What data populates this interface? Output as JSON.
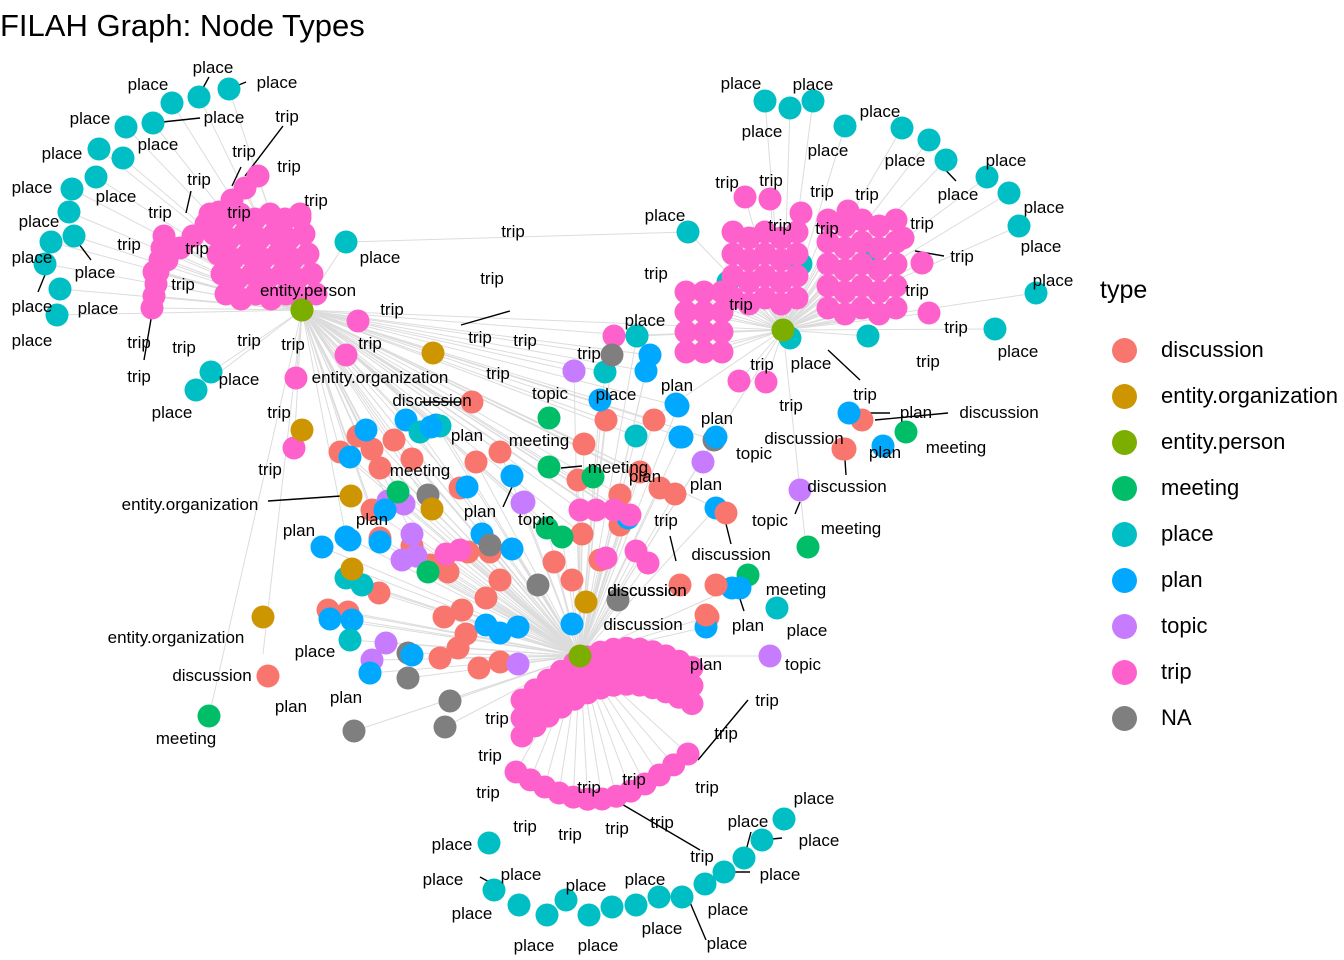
{
  "title": "FILAH Graph: Node Types",
  "legend": {
    "title": "type",
    "items": [
      {
        "key": "discussion",
        "label": "discussion",
        "color": "#F8766D"
      },
      {
        "key": "entity.organization",
        "label": "entity.organization",
        "color": "#CD9600"
      },
      {
        "key": "entity.person",
        "label": "entity.person",
        "color": "#7CAE00"
      },
      {
        "key": "meeting",
        "label": "meeting",
        "color": "#00BE67"
      },
      {
        "key": "place",
        "label": "place",
        "color": "#00BFC4"
      },
      {
        "key": "plan",
        "label": "plan",
        "color": "#00A9FF"
      },
      {
        "key": "topic",
        "label": "topic",
        "color": "#C77CFF"
      },
      {
        "key": "trip",
        "label": "trip",
        "color": "#FF61CC"
      },
      {
        "key": "NA",
        "label": "NA",
        "color": "#7F7F7F"
      }
    ]
  },
  "nodes": [
    {
      "id": "p_tl_1",
      "type": "entity.person",
      "label": "entity.person"
    },
    {
      "id": "p_tr_1",
      "type": "entity.person",
      "label": ""
    },
    {
      "id": "p_bot_1",
      "type": "entity.person",
      "label": ""
    },
    {
      "id": "o1",
      "type": "entity.organization",
      "label": "entity.organization"
    },
    {
      "id": "o2",
      "type": "entity.organization",
      "label": "entity.organization"
    },
    {
      "id": "o3",
      "type": "entity.organization",
      "label": "entity.organization"
    },
    {
      "id": "o4",
      "type": "entity.organization",
      "label": ""
    },
    {
      "id": "o5",
      "type": "entity.organization",
      "label": ""
    },
    {
      "id": "o6",
      "type": "entity.organization",
      "label": ""
    },
    {
      "id": "d1",
      "type": "discussion",
      "label": "discussion"
    },
    {
      "id": "d2",
      "type": "discussion",
      "label": "discussion"
    },
    {
      "id": "d3",
      "type": "discussion",
      "label": "discussion"
    },
    {
      "id": "d4",
      "type": "discussion",
      "label": "discussion"
    },
    {
      "id": "d5",
      "type": "discussion",
      "label": "discussion"
    },
    {
      "id": "d6",
      "type": "discussion",
      "label": "discussion"
    },
    {
      "id": "d7",
      "type": "discussion",
      "label": "discussion"
    },
    {
      "id": "d8",
      "type": "discussion",
      "label": "discussion"
    },
    {
      "id": "d9",
      "type": "discussion",
      "label": "discussion"
    },
    {
      "id": "m1",
      "type": "meeting",
      "label": "meeting"
    },
    {
      "id": "m2",
      "type": "meeting",
      "label": "meeting"
    },
    {
      "id": "m3",
      "type": "meeting",
      "label": "meeting"
    },
    {
      "id": "m4",
      "type": "meeting",
      "label": "meeting"
    },
    {
      "id": "m5",
      "type": "meeting",
      "label": "meeting"
    },
    {
      "id": "m6",
      "type": "meeting",
      "label": "meeting"
    },
    {
      "id": "m7",
      "type": "meeting",
      "label": "meeting"
    },
    {
      "id": "t1",
      "type": "topic",
      "label": "topic"
    },
    {
      "id": "t2",
      "type": "topic",
      "label": "topic"
    },
    {
      "id": "t3",
      "type": "topic",
      "label": "topic"
    },
    {
      "id": "t4",
      "type": "topic",
      "label": "topic"
    },
    {
      "id": "t5",
      "type": "topic",
      "label": "topic"
    },
    {
      "id": "pl1",
      "type": "plan",
      "label": "plan"
    },
    {
      "id": "pl2",
      "type": "plan",
      "label": "plan"
    },
    {
      "id": "pl3",
      "type": "plan",
      "label": "plan"
    },
    {
      "id": "pl4",
      "type": "plan",
      "label": "plan"
    },
    {
      "id": "pl5",
      "type": "plan",
      "label": "plan"
    },
    {
      "id": "pl6",
      "type": "plan",
      "label": "plan"
    },
    {
      "id": "pl7",
      "type": "plan",
      "label": "plan"
    },
    {
      "id": "pl8",
      "type": "plan",
      "label": "plan"
    },
    {
      "id": "pl9",
      "type": "plan",
      "label": "plan"
    },
    {
      "id": "pl10",
      "type": "plan",
      "label": "plan"
    },
    {
      "id": "pl11",
      "type": "plan",
      "label": "plan"
    },
    {
      "id": "pl12",
      "type": "plan",
      "label": "plan"
    },
    {
      "id": "pl13",
      "type": "plan",
      "label": "plan"
    },
    {
      "id": "pl14",
      "type": "plan",
      "label": "plan"
    }
  ]
}
